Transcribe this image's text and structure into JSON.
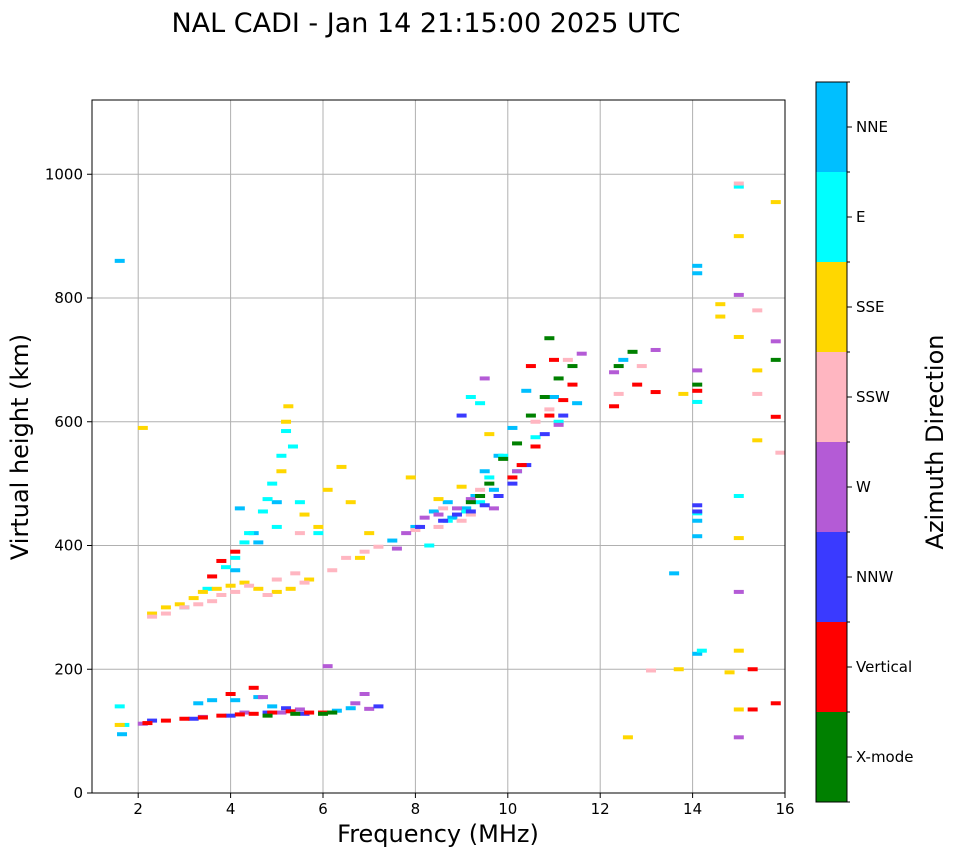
{
  "chart_data": {
    "type": "scatter",
    "title": "NAL CADI - Jan 14 21:15:00 2025 UTC",
    "xlabel": "Frequency (MHz)",
    "ylabel": "Virtual height (km)",
    "xlim": [
      1,
      16
    ],
    "ylim": [
      0,
      1120
    ],
    "xticks": [
      2,
      4,
      6,
      8,
      10,
      12,
      14,
      16
    ],
    "yticks": [
      0,
      200,
      400,
      600,
      800,
      1000
    ],
    "grid": true,
    "colorbar": {
      "label": "Azimuth Direction",
      "categories": [
        {
          "name": "X-mode",
          "color": "#008000"
        },
        {
          "name": "Vertical",
          "color": "#ff0000"
        },
        {
          "name": "NNW",
          "color": "#3a3aff"
        },
        {
          "name": "W",
          "color": "#b45bd6"
        },
        {
          "name": "SSW",
          "color": "#ffb6c1"
        },
        {
          "name": "SSE",
          "color": "#ffd700"
        },
        {
          "name": "E",
          "color": "#00ffff"
        },
        {
          "name": "NNE",
          "color": "#00bfff"
        }
      ]
    },
    "series": [
      {
        "name": "NNE",
        "points": [
          [
            1.6,
            860
          ],
          [
            1.65,
            95
          ],
          [
            3.3,
            145
          ],
          [
            3.6,
            150
          ],
          [
            4.1,
            150
          ],
          [
            4.6,
            155
          ],
          [
            4.9,
            140
          ],
          [
            6.3,
            133
          ],
          [
            6.6,
            137
          ],
          [
            4.2,
            460
          ],
          [
            4.6,
            405
          ],
          [
            5.0,
            470
          ],
          [
            4.5,
            420
          ],
          [
            4.1,
            360
          ],
          [
            7.5,
            408
          ],
          [
            8.0,
            430
          ],
          [
            8.4,
            455
          ],
          [
            8.8,
            445
          ],
          [
            9.1,
            460
          ],
          [
            8.7,
            470
          ],
          [
            9.3,
            480
          ],
          [
            9.7,
            490
          ],
          [
            9.5,
            520
          ],
          [
            9.8,
            545
          ],
          [
            10.1,
            590
          ],
          [
            10.4,
            650
          ],
          [
            11.0,
            640
          ],
          [
            11.5,
            630
          ],
          [
            12.5,
            700
          ],
          [
            14.1,
            852
          ],
          [
            14.1,
            840
          ],
          [
            14.1,
            440
          ],
          [
            14.1,
            415
          ],
          [
            14.1,
            225
          ],
          [
            13.6,
            355
          ]
        ]
      },
      {
        "name": "E",
        "points": [
          [
            1.6,
            140
          ],
          [
            1.7,
            110
          ],
          [
            3.0,
            300
          ],
          [
            3.5,
            330
          ],
          [
            3.9,
            365
          ],
          [
            4.1,
            380
          ],
          [
            4.4,
            420
          ],
          [
            4.7,
            455
          ],
          [
            4.9,
            500
          ],
          [
            5.1,
            545
          ],
          [
            5.2,
            585
          ],
          [
            5.35,
            560
          ],
          [
            4.8,
            475
          ],
          [
            5.5,
            470
          ],
          [
            4.3,
            405
          ],
          [
            5.0,
            430
          ],
          [
            8.3,
            400
          ],
          [
            8.7,
            440
          ],
          [
            9.1,
            455
          ],
          [
            9.4,
            470
          ],
          [
            9.6,
            510
          ],
          [
            9.9,
            545
          ],
          [
            10.2,
            520
          ],
          [
            10.6,
            575
          ],
          [
            11.1,
            600
          ],
          [
            9.4,
            630
          ],
          [
            9.2,
            640
          ],
          [
            14.1,
            632
          ],
          [
            14.1,
            452
          ],
          [
            15.0,
            980
          ],
          [
            15.0,
            480
          ],
          [
            14.2,
            230
          ],
          [
            5.9,
            420
          ]
        ]
      },
      {
        "name": "SSE",
        "points": [
          [
            1.6,
            110
          ],
          [
            2.1,
            590
          ],
          [
            2.3,
            290
          ],
          [
            2.6,
            300
          ],
          [
            2.9,
            305
          ],
          [
            3.2,
            315
          ],
          [
            3.4,
            325
          ],
          [
            3.7,
            330
          ],
          [
            4.0,
            335
          ],
          [
            4.3,
            340
          ],
          [
            4.6,
            330
          ],
          [
            5.0,
            325
          ],
          [
            5.3,
            330
          ],
          [
            5.7,
            345
          ],
          [
            5.1,
            520
          ],
          [
            5.2,
            600
          ],
          [
            5.25,
            625
          ],
          [
            5.6,
            450
          ],
          [
            5.9,
            430
          ],
          [
            6.1,
            490
          ],
          [
            6.4,
            527
          ],
          [
            6.6,
            470
          ],
          [
            7.0,
            420
          ],
          [
            6.8,
            380
          ],
          [
            7.9,
            510
          ],
          [
            8.5,
            475
          ],
          [
            9.0,
            495
          ],
          [
            9.6,
            580
          ],
          [
            12.6,
            90
          ],
          [
            13.7,
            200
          ],
          [
            14.6,
            790
          ],
          [
            14.6,
            770
          ],
          [
            14.8,
            195
          ],
          [
            15.0,
            900
          ],
          [
            15.0,
            737
          ],
          [
            15.0,
            412
          ],
          [
            15.0,
            230
          ],
          [
            15.0,
            135
          ],
          [
            15.4,
            683
          ],
          [
            15.4,
            570
          ],
          [
            15.8,
            955
          ],
          [
            13.8,
            645
          ]
        ]
      },
      {
        "name": "SSW",
        "points": [
          [
            2.3,
            285
          ],
          [
            2.6,
            290
          ],
          [
            3.0,
            300
          ],
          [
            3.3,
            305
          ],
          [
            3.6,
            310
          ],
          [
            3.8,
            320
          ],
          [
            4.1,
            325
          ],
          [
            4.4,
            335
          ],
          [
            4.8,
            320
          ],
          [
            5.4,
            355
          ],
          [
            5.6,
            340
          ],
          [
            5.0,
            345
          ],
          [
            6.2,
            360
          ],
          [
            6.5,
            380
          ],
          [
            6.9,
            390
          ],
          [
            7.2,
            398
          ],
          [
            8.0,
            425
          ],
          [
            8.5,
            430
          ],
          [
            8.6,
            460
          ],
          [
            9.0,
            440
          ],
          [
            9.2,
            450
          ],
          [
            9.4,
            490
          ],
          [
            10.6,
            600
          ],
          [
            10.9,
            620
          ],
          [
            11.3,
            700
          ],
          [
            12.4,
            645
          ],
          [
            12.9,
            690
          ],
          [
            13.1,
            198
          ],
          [
            15.0,
            985
          ],
          [
            15.4,
            780
          ],
          [
            15.4,
            645
          ],
          [
            15.9,
            550
          ],
          [
            5.5,
            420
          ]
        ]
      },
      {
        "name": "W",
        "points": [
          [
            2.1,
            112
          ],
          [
            3.4,
            123
          ],
          [
            4.3,
            130
          ],
          [
            4.7,
            155
          ],
          [
            5.1,
            130
          ],
          [
            5.5,
            135
          ],
          [
            6.1,
            205
          ],
          [
            6.7,
            145
          ],
          [
            6.9,
            160
          ],
          [
            7.0,
            136
          ],
          [
            7.6,
            395
          ],
          [
            7.8,
            420
          ],
          [
            8.2,
            445
          ],
          [
            8.5,
            450
          ],
          [
            8.9,
            460
          ],
          [
            9.2,
            475
          ],
          [
            9.5,
            670
          ],
          [
            9.7,
            460
          ],
          [
            10.2,
            520
          ],
          [
            10.6,
            560
          ],
          [
            11.1,
            595
          ],
          [
            11.6,
            710
          ],
          [
            12.3,
            680
          ],
          [
            13.2,
            716
          ],
          [
            14.1,
            683
          ],
          [
            15.0,
            805
          ],
          [
            15.0,
            325
          ],
          [
            15.0,
            90
          ],
          [
            15.8,
            730
          ]
        ]
      },
      {
        "name": "NNW",
        "points": [
          [
            2.3,
            117
          ],
          [
            3.2,
            120
          ],
          [
            4.0,
            125
          ],
          [
            4.8,
            130
          ],
          [
            5.2,
            137
          ],
          [
            5.6,
            128
          ],
          [
            7.2,
            140
          ],
          [
            8.1,
            430
          ],
          [
            8.6,
            440
          ],
          [
            8.9,
            450
          ],
          [
            9.2,
            455
          ],
          [
            9.5,
            465
          ],
          [
            9.8,
            480
          ],
          [
            10.1,
            500
          ],
          [
            10.4,
            530
          ],
          [
            10.8,
            580
          ],
          [
            11.2,
            610
          ],
          [
            9.0,
            610
          ],
          [
            14.1,
            465
          ],
          [
            14.1,
            455
          ]
        ]
      },
      {
        "name": "Vertical",
        "points": [
          [
            2.2,
            113
          ],
          [
            2.6,
            117
          ],
          [
            3.0,
            120
          ],
          [
            3.4,
            122
          ],
          [
            3.8,
            125
          ],
          [
            4.2,
            127
          ],
          [
            4.5,
            128
          ],
          [
            4.9,
            130
          ],
          [
            5.3,
            132
          ],
          [
            5.7,
            130
          ],
          [
            6.0,
            130
          ],
          [
            4.5,
            170
          ],
          [
            4.0,
            160
          ],
          [
            4.1,
            390
          ],
          [
            3.8,
            375
          ],
          [
            3.6,
            350
          ],
          [
            10.1,
            510
          ],
          [
            10.3,
            530
          ],
          [
            10.6,
            560
          ],
          [
            10.9,
            610
          ],
          [
            11.2,
            635
          ],
          [
            11.4,
            660
          ],
          [
            10.5,
            690
          ],
          [
            11.0,
            700
          ],
          [
            12.3,
            625
          ],
          [
            12.8,
            660
          ],
          [
            13.2,
            648
          ],
          [
            15.3,
            200
          ],
          [
            15.3,
            135
          ],
          [
            15.8,
            145
          ],
          [
            15.8,
            608
          ],
          [
            14.1,
            650
          ]
        ]
      },
      {
        "name": "X-mode",
        "points": [
          [
            4.8,
            125
          ],
          [
            5.4,
            128
          ],
          [
            6.0,
            128
          ],
          [
            6.2,
            130
          ],
          [
            9.2,
            470
          ],
          [
            9.4,
            480
          ],
          [
            9.6,
            500
          ],
          [
            9.9,
            540
          ],
          [
            10.2,
            565
          ],
          [
            10.5,
            610
          ],
          [
            10.8,
            640
          ],
          [
            11.1,
            670
          ],
          [
            11.4,
            690
          ],
          [
            12.7,
            713
          ],
          [
            10.9,
            735
          ],
          [
            12.4,
            690
          ],
          [
            14.1,
            660
          ],
          [
            15.8,
            700
          ]
        ]
      }
    ]
  }
}
